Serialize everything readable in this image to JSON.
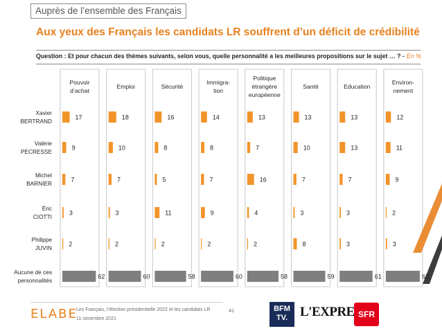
{
  "header": {
    "top_label": "Auprès de l’ensemble des Français",
    "headline": "Aux yeux des Français les candidats LR souffrent d’un déficit de crédibilité",
    "question": "Question : Et pour chacun des thèmes suivants, selon vous, quelle personnalité a les meilleures propositions sur le sujet … ? -",
    "question_unit": "En %"
  },
  "colors": {
    "accent": "#E8811F",
    "bar_candidate": "#F2942A",
    "bar_none": "#7F7F7F",
    "column_border": "#c8c8c8"
  },
  "chart_data": {
    "type": "bar",
    "orientation": "horizontal",
    "categories": [
      "Pouvoir d’achat",
      "Emploi",
      "Sécurité",
      "Immigra-tion",
      "Politique étrangère européenne",
      "Santé",
      "Education",
      "Environ-nement"
    ],
    "category_lines": [
      [
        "Pouvoir",
        "d’achat"
      ],
      [
        "Emploi"
      ],
      [
        "Sécurité"
      ],
      [
        "Immigra-",
        "tion"
      ],
      [
        "Politique",
        "étrangère",
        "européenne"
      ],
      [
        "Santé"
      ],
      [
        "Education"
      ],
      [
        "Environ-",
        "nement"
      ]
    ],
    "series": [
      {
        "name": "Xavier BERTRAND",
        "name_lines": [
          "Xavier",
          "BERTRAND"
        ],
        "values": [
          17,
          18,
          16,
          14,
          13,
          13,
          13,
          12
        ]
      },
      {
        "name": "Valérie PECRESSE",
        "name_lines": [
          "Valérie",
          "PECRESSE"
        ],
        "values": [
          9,
          10,
          8,
          8,
          7,
          10,
          13,
          11
        ]
      },
      {
        "name": "Michel BARNIER",
        "name_lines": [
          "Michel",
          "BARNIER"
        ],
        "values": [
          7,
          7,
          5,
          7,
          16,
          7,
          7,
          9
        ]
      },
      {
        "name": "Éric CIOTTI",
        "name_lines": [
          "Éric",
          "CIOTTI"
        ],
        "values": [
          3,
          3,
          11,
          9,
          4,
          3,
          3,
          2
        ]
      },
      {
        "name": "Philippe JUVIN",
        "name_lines": [
          "Philippe",
          "JUVIN"
        ],
        "values": [
          2,
          2,
          2,
          2,
          2,
          8,
          3,
          3
        ]
      },
      {
        "name": "Aucune de ces personnalités",
        "name_lines": [
          "Aucune de ces",
          "personnalités"
        ],
        "values": [
          62,
          60,
          58,
          60,
          58,
          59,
          61,
          63
        ]
      }
    ],
    "unit": "%"
  },
  "footer": {
    "logo_text": "ELABE",
    "source": "Les Français, l’élection présidentielle 2022 et les candidats LR",
    "date": "11 novembre 2021",
    "page_number": "41",
    "bfm_line1": "BFM",
    "bfm_line2": "TV.",
    "express_logo": "L'EXPRESS",
    "sfr_logo": "SFR"
  }
}
